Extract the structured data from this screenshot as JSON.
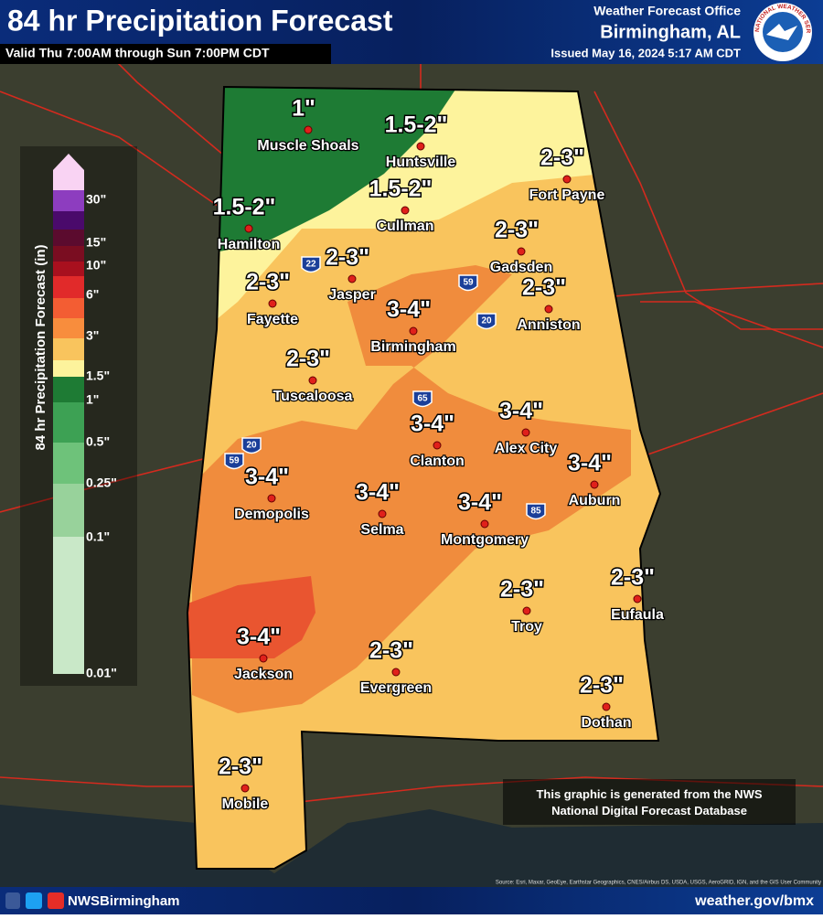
{
  "header": {
    "title": "84 hr Precipitation Forecast",
    "valid": "Valid Thu 7:00AM through Sun 7:00PM CDT",
    "office": "Weather Forecast Office",
    "location": "Birmingham, AL",
    "issued": "Issued May 16, 2024 5:17 AM CDT",
    "logo_text": "NATIONAL WEATHER SERVICE"
  },
  "legend": {
    "title": "84 hr Precipitation Forecast (in)",
    "labels": [
      "30\"",
      "15\"",
      "10\"",
      "6\"",
      "3\"",
      "1.5\"",
      "1\"",
      "0.5\"",
      "0.25\"",
      "0.1\"",
      "0.01\""
    ]
  },
  "cities": [
    {
      "name": "Muscle Shoals",
      "amount": "1\""
    },
    {
      "name": "Huntsville",
      "amount": "1.5-2\""
    },
    {
      "name": "Fort Payne",
      "amount": "2-3\""
    },
    {
      "name": "Cullman",
      "amount": "1.5-2\""
    },
    {
      "name": "Hamilton",
      "amount": "1.5-2\""
    },
    {
      "name": "Jasper",
      "amount": "2-3\""
    },
    {
      "name": "Gadsden",
      "amount": "2-3\""
    },
    {
      "name": "Fayette",
      "amount": "2-3\""
    },
    {
      "name": "Birmingham",
      "amount": "3-4\""
    },
    {
      "name": "Anniston",
      "amount": "2-3\""
    },
    {
      "name": "Tuscaloosa",
      "amount": "2-3\""
    },
    {
      "name": "Alex City",
      "amount": "3-4\""
    },
    {
      "name": "Clanton",
      "amount": "3-4\""
    },
    {
      "name": "Auburn",
      "amount": "3-4\""
    },
    {
      "name": "Demopolis",
      "amount": "3-4\""
    },
    {
      "name": "Selma",
      "amount": "3-4\""
    },
    {
      "name": "Montgomery",
      "amount": "3-4\""
    },
    {
      "name": "Troy",
      "amount": "2-3\""
    },
    {
      "name": "Eufaula",
      "amount": "2-3\""
    },
    {
      "name": "Jackson",
      "amount": "3-4\""
    },
    {
      "name": "Evergreen",
      "amount": "2-3\""
    },
    {
      "name": "Dothan",
      "amount": "2-3\""
    },
    {
      "name": "Mobile",
      "amount": "2-3\""
    }
  ],
  "interstates": [
    "22",
    "59",
    "20",
    "65",
    "20",
    "59",
    "85"
  ],
  "note": "This graphic is generated from the NWS National Digital Forecast Database",
  "source": "Source: Esri, Maxar, GeoEye, Earthstar Geographics, CNES/Airbus DS, USDA, USGS, AeroGRID, IGN, and the GIS User Community",
  "footer": {
    "handle": "NWSBirmingham",
    "url": "weather.gov/bmx"
  }
}
